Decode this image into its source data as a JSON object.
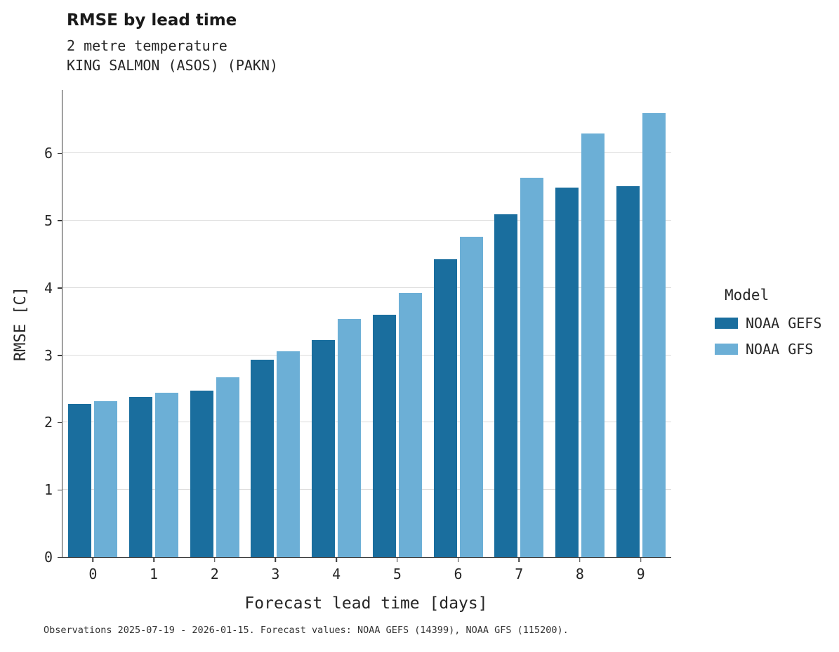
{
  "header": {
    "title": "RMSE by lead time",
    "subtitle1": "2 metre temperature",
    "subtitle2": "KING SALMON (ASOS) (PAKN)"
  },
  "legend": {
    "title": "Model",
    "entries": [
      {
        "label": "NOAA GEFS",
        "color": "#1a6e9e"
      },
      {
        "label": "NOAA GFS",
        "color": "#6cafd6"
      }
    ]
  },
  "caption": "Observations 2025-07-19 - 2026-01-15. Forecast values: NOAA GEFS (14399), NOAA GFS (115200).",
  "chart_data": {
    "type": "bar",
    "title": "RMSE by lead time",
    "subtitle": "2 metre temperature — KING SALMON (ASOS) (PAKN)",
    "xlabel": "Forecast lead time [days]",
    "ylabel": "RMSE [C]",
    "categories": [
      "0",
      "1",
      "2",
      "3",
      "4",
      "5",
      "6",
      "7",
      "8",
      "9"
    ],
    "series": [
      {
        "name": "NOAA GEFS",
        "color": "#1a6e9e",
        "values": [
          2.28,
          2.38,
          2.47,
          2.93,
          3.22,
          3.6,
          4.42,
          5.09,
          5.49,
          5.51
        ]
      },
      {
        "name": "NOAA GFS",
        "color": "#6cafd6",
        "values": [
          2.32,
          2.44,
          2.67,
          3.06,
          3.54,
          3.92,
          4.76,
          5.64,
          6.29,
          6.6
        ]
      }
    ],
    "ylim": [
      0,
      6.94
    ],
    "yticks": [
      0,
      1,
      2,
      3,
      4,
      5,
      6
    ],
    "grid": true,
    "legend_position": "right",
    "legend_title": "Model"
  }
}
